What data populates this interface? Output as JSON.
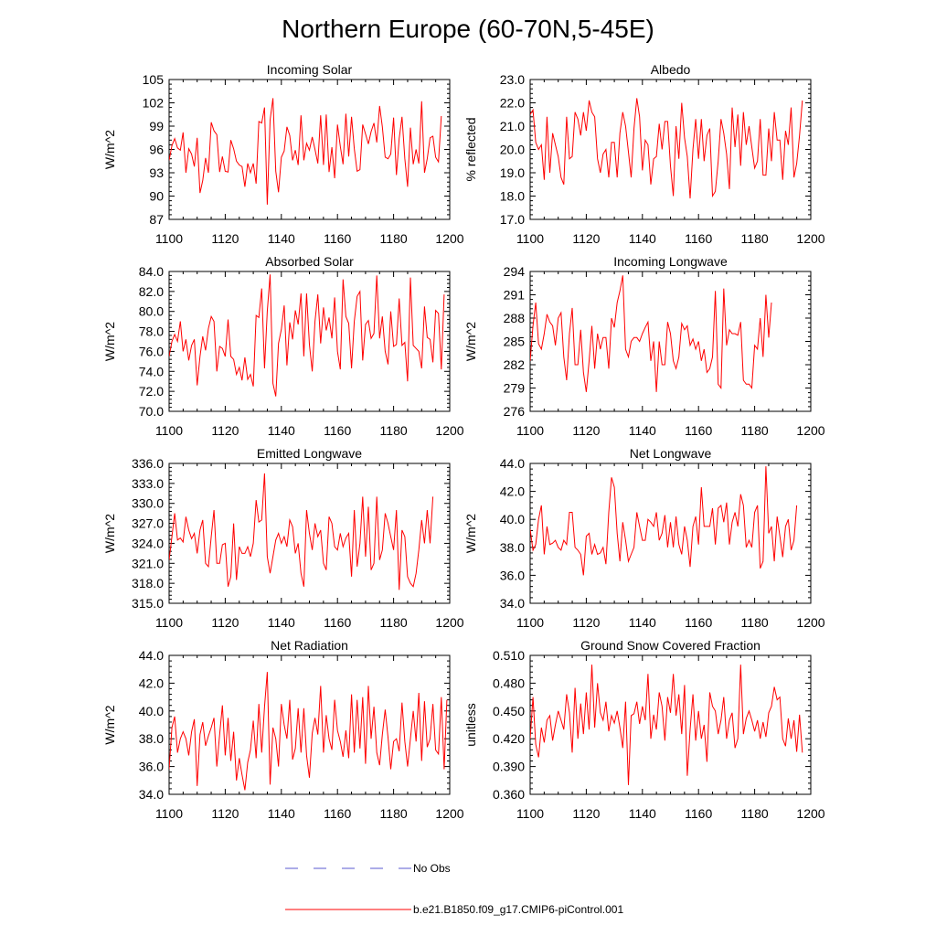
{
  "title": "Northern Europe (60-70N,5-45E)",
  "legend": [
    {
      "label": "No Obs",
      "color": "#5a5ad0",
      "style": "dashed"
    },
    {
      "label": "b.e21.B1850.f09_g17.CMIP6-piControl.001",
      "color": "#ff0000",
      "style": "solid"
    }
  ],
  "chart_data": [
    {
      "type": "line",
      "title": "Incoming Solar",
      "ylabel": "W/m^2",
      "xlim": [
        1100,
        1200
      ],
      "ylim": [
        87,
        105
      ],
      "xticks": [
        "1100",
        "1120",
        "1140",
        "1160",
        "1180",
        "1200"
      ],
      "yticks": [
        "87",
        "90",
        "93",
        "96",
        "99",
        "102",
        "105"
      ],
      "series": [
        {
          "name": "b.e21.B1850.f09_g17.CMIP6-piControl.001",
          "color": "#ff0000",
          "x_start": 1100,
          "values": [
            94.6,
            96.5,
            97.4,
            96.2,
            95.9,
            98.2,
            93.0,
            96.1,
            95.4,
            93.8,
            97.5,
            90.4,
            92.0,
            94.9,
            93.0,
            99.5,
            98.4,
            97.9,
            93.1,
            95.1,
            93.2,
            93.1,
            97.2,
            96.1,
            94.5,
            94.0,
            93.8,
            91.2,
            94.2,
            93.0,
            94.2,
            91.6,
            99.6,
            99.4,
            101.4,
            88.9,
            99.8,
            102.6,
            93.2,
            90.5,
            95.0,
            95.8,
            98.9,
            97.8,
            94.6,
            95.9,
            94.0,
            100.4,
            94.6,
            96.8,
            95.9,
            97.6,
            96.0,
            94.2,
            100.4,
            94.0,
            100.5,
            93.1,
            96.3,
            92.3,
            99.2,
            96.4,
            94.1,
            100.6,
            95.1,
            100.2,
            96.1,
            93.2,
            93.4,
            99.2,
            98.0,
            96.7,
            98.3,
            99.4,
            96.9,
            101.6,
            98.9,
            95.0,
            94.8,
            95.4,
            100.1,
            92.7,
            97.4,
            100.2,
            94.8,
            91.2,
            98.8,
            94.1,
            96.0,
            94.2,
            102.2,
            93.0,
            94.8,
            97.5,
            97.7,
            95.0,
            94.4,
            100.3
          ]
        }
      ]
    },
    {
      "type": "line",
      "title": "Albedo",
      "ylabel": "% reflected",
      "xlim": [
        1100,
        1200
      ],
      "ylim": [
        17.0,
        23.0
      ],
      "xticks": [
        "1100",
        "1120",
        "1140",
        "1160",
        "1180",
        "1200"
      ],
      "yticks": [
        "17.0",
        "18.0",
        "19.0",
        "20.0",
        "21.0",
        "22.0",
        "23.0"
      ],
      "series": [
        {
          "name": "b.e21.B1850.f09_g17.CMIP6-piControl.001",
          "color": "#ff0000",
          "x_start": 1100,
          "values": [
            21.5,
            21.7,
            20.3,
            20.0,
            20.2,
            18.7,
            21.4,
            19.0,
            20.7,
            20.2,
            19.7,
            18.8,
            18.5,
            21.4,
            19.6,
            19.7,
            21.6,
            21.3,
            20.6,
            21.6,
            20.8,
            22.1,
            21.6,
            21.4,
            19.6,
            19.0,
            19.8,
            20.0,
            18.8,
            20.3,
            20.3,
            18.8,
            20.7,
            21.6,
            21.0,
            19.9,
            18.8,
            20.9,
            22.2,
            21.4,
            19.1,
            20.4,
            20.2,
            18.5,
            19.6,
            19.7,
            21.1,
            20.0,
            21.2,
            21.2,
            19.3,
            18.0,
            21.0,
            19.6,
            22.0,
            20.5,
            19.7,
            17.9,
            20.0,
            21.3,
            19.6,
            21.3,
            19.5,
            20.6,
            20.9,
            18.0,
            18.2,
            19.5,
            21.3,
            20.7,
            19.8,
            18.3,
            21.8,
            20.1,
            21.5,
            19.3,
            21.6,
            20.2,
            21.0,
            20.1,
            19.2,
            19.5,
            21.3,
            18.9,
            18.9,
            20.9,
            19.5,
            21.6,
            20.4,
            20.4,
            18.7,
            20.8,
            20.2,
            21.8,
            18.8,
            19.4,
            20.6,
            22.1
          ]
        }
      ]
    },
    {
      "type": "line",
      "title": "Absorbed Solar",
      "ylabel": "W/m^2",
      "xlim": [
        1100,
        1200
      ],
      "ylim": [
        70.0,
        84.0
      ],
      "xticks": [
        "1100",
        "1120",
        "1140",
        "1160",
        "1180",
        "1200"
      ],
      "yticks": [
        "70.0",
        "72.0",
        "74.0",
        "76.0",
        "78.0",
        "80.0",
        "82.0",
        "84.0"
      ],
      "series": [
        {
          "name": "b.e21.B1850.f09_g17.CMIP6-piControl.001",
          "color": "#ff0000",
          "x_start": 1100,
          "values": [
            75.5,
            77.0,
            77.7,
            77.0,
            79.0,
            76.0,
            77.2,
            75.1,
            76.6,
            77.2,
            72.6,
            75.5,
            77.5,
            76.1,
            78.3,
            79.5,
            79.0,
            74.0,
            76.5,
            76.3,
            75.5,
            79.2,
            75.5,
            75.2,
            73.7,
            74.4,
            73.1,
            75.4,
            73.2,
            73.7,
            72.5,
            79.6,
            79.4,
            82.3,
            74.3,
            80.0,
            83.7,
            72.8,
            71.5,
            76.8,
            78.2,
            80.6,
            74.6,
            78.9,
            77.2,
            80.1,
            78.7,
            81.8,
            75.5,
            81.8,
            76.7,
            74.0,
            79.0,
            81.7,
            76.8,
            80.4,
            78.1,
            79.4,
            77.3,
            81.4,
            76.0,
            74.2,
            83.2,
            79.5,
            78.8,
            74.3,
            79.0,
            81.5,
            82.0,
            75.1,
            78.7,
            79.1,
            77.3,
            77.8,
            83.6,
            77.3,
            79.5,
            76.0,
            74.7,
            80.0,
            76.5,
            76.7,
            81.3,
            76.6,
            76.9,
            73.0,
            83.4,
            76.6,
            76.3,
            76.0,
            74.3,
            80.5,
            77.4,
            77.2,
            74.9,
            80.1,
            79.8,
            74.2,
            81.7
          ]
        }
      ]
    },
    {
      "type": "line",
      "title": "Incoming Longwave",
      "ylabel": "W/m^2",
      "xlim": [
        1100,
        1200
      ],
      "ylim": [
        276,
        294
      ],
      "xticks": [
        "1100",
        "1120",
        "1140",
        "1160",
        "1180",
        "1200"
      ],
      "yticks": [
        "276",
        "279",
        "282",
        "285",
        "288",
        "291",
        "294"
      ],
      "series": [
        {
          "name": "b.e21.B1850.f09_g17.CMIP6-piControl.001",
          "color": "#ff0000",
          "x_start": 1100,
          "values": [
            282.5,
            287.0,
            290.0,
            284.7,
            284.0,
            286.0,
            288.5,
            287.5,
            287.0,
            284.5,
            288.0,
            288.7,
            283.0,
            280.0,
            286.0,
            289.3,
            282.0,
            282.0,
            286.5,
            281.0,
            278.5,
            282.5,
            287.0,
            281.5,
            286.0,
            284.0,
            285.5,
            285.5,
            281.5,
            288.0,
            286.8,
            290.0,
            291.5,
            293.5,
            284.0,
            283.0,
            285.0,
            285.5,
            285.5,
            285.0,
            286.0,
            286.8,
            287.5,
            282.5,
            285.0,
            278.5,
            285.0,
            282.0,
            282.0,
            287.5,
            286.0,
            282.5,
            281.5,
            283.0,
            287.3,
            286.5,
            287.0,
            284.5,
            285.3,
            284.0,
            285.0,
            282.5,
            284.0,
            281.0,
            281.5,
            283.0,
            291.5,
            279.5,
            279.0,
            291.8,
            284.5,
            286.5,
            286.0,
            286.0,
            285.8,
            287.5,
            280.0,
            279.5,
            279.5,
            279.0,
            284.5,
            284.0,
            288.0,
            283.0,
            291.0,
            285.5,
            290.0
          ]
        }
      ]
    },
    {
      "type": "line",
      "title": "Emitted Longwave",
      "ylabel": "W/m^2",
      "xlim": [
        1100,
        1200
      ],
      "ylim": [
        315.0,
        336.0
      ],
      "xticks": [
        "1100",
        "1120",
        "1140",
        "1160",
        "1180",
        "1200"
      ],
      "yticks": [
        "315.0",
        "318.0",
        "321.0",
        "324.0",
        "327.0",
        "330.0",
        "333.0",
        "336.0"
      ],
      "series": [
        {
          "name": "b.e21.B1850.f09_g17.CMIP6-piControl.001",
          "color": "#ff0000",
          "x_start": 1100,
          "values": [
            321.5,
            325.0,
            328.5,
            324.5,
            324.8,
            324.2,
            328.0,
            326.0,
            324.7,
            325.5,
            322.5,
            326.0,
            327.5,
            321.0,
            320.5,
            325.0,
            329.0,
            321.0,
            321.0,
            323.8,
            324.0,
            317.5,
            319.0,
            327.0,
            318.5,
            323.5,
            322.5,
            322.5,
            323.5,
            322.0,
            324.0,
            330.5,
            327.2,
            327.5,
            334.5,
            322.0,
            319.5,
            322.0,
            324.5,
            325.5,
            324.0,
            325.0,
            323.5,
            327.5,
            326.5,
            322.5,
            324.0,
            319.5,
            317.5,
            329.0,
            325.5,
            323.0,
            327.0,
            325.0,
            326.0,
            321.0,
            320.0,
            328.0,
            327.0,
            323.5,
            323.0,
            325.5,
            323.5,
            324.8,
            325.5,
            319.0,
            329.0,
            320.5,
            324.0,
            331.0,
            322.0,
            329.5,
            320.0,
            321.0,
            331.0,
            321.5,
            323.0,
            328.5,
            327.0,
            325.0,
            323.0,
            329.0,
            317.0,
            326.0,
            325.0,
            319.0,
            318.0,
            317.5,
            319.5,
            323.0,
            327.5,
            324.0,
            329.0,
            324.0,
            331.0
          ]
        }
      ]
    },
    {
      "type": "line",
      "title": "Net Longwave",
      "ylabel": "W/m^2",
      "xlim": [
        1100,
        1200
      ],
      "ylim": [
        34.0,
        44.0
      ],
      "xticks": [
        "1100",
        "1120",
        "1140",
        "1160",
        "1180",
        "1200"
      ],
      "yticks": [
        "34.0",
        "36.0",
        "38.0",
        "40.0",
        "42.0",
        "44.0"
      ],
      "series": [
        {
          "name": "b.e21.B1850.f09_g17.CMIP6-piControl.001",
          "color": "#ff0000",
          "x_start": 1100,
          "values": [
            39.3,
            37.8,
            38.2,
            40.0,
            41.0,
            37.5,
            39.5,
            38.2,
            38.3,
            38.5,
            38.0,
            37.8,
            38.5,
            38.2,
            40.5,
            40.5,
            38.0,
            37.8,
            37.5,
            36.0,
            38.8,
            39.0,
            37.5,
            38.2,
            37.5,
            37.6,
            38.0,
            36.8,
            40.5,
            43.0,
            42.3,
            39.0,
            37.0,
            39.8,
            38.5,
            37.0,
            37.5,
            38.0,
            40.5,
            39.5,
            38.5,
            38.5,
            40.0,
            39.8,
            39.5,
            40.5,
            38.5,
            39.0,
            40.3,
            38.0,
            39.8,
            38.0,
            40.2,
            38.2,
            37.5,
            39.5,
            38.5,
            36.6,
            39.5,
            40.2,
            38.2,
            42.3,
            39.5,
            39.5,
            39.5,
            40.8,
            38.2,
            40.8,
            41.0,
            39.8,
            41.2,
            38.2,
            39.8,
            40.5,
            39.5,
            41.8,
            41.0,
            38.0,
            38.5,
            38.0,
            40.5,
            41.0,
            36.5,
            37.0,
            43.8,
            39.0,
            39.5,
            37.0,
            40.2,
            38.8,
            37.3,
            39.5,
            40.0,
            37.8,
            38.5,
            41.0
          ]
        }
      ]
    },
    {
      "type": "line",
      "title": "Net Radiation",
      "ylabel": "W/m^2",
      "xlim": [
        1100,
        1200
      ],
      "ylim": [
        34.0,
        44.0
      ],
      "xticks": [
        "1100",
        "1120",
        "1140",
        "1160",
        "1180",
        "1200"
      ],
      "yticks": [
        "34.0",
        "36.0",
        "38.0",
        "40.0",
        "42.0",
        "44.0"
      ],
      "series": [
        {
          "name": "b.e21.B1850.f09_g17.CMIP6-piControl.001",
          "color": "#ff0000",
          "x_start": 1100,
          "values": [
            35.8,
            38.8,
            39.6,
            37.0,
            38.0,
            38.5,
            38.0,
            36.8,
            38.5,
            39.4,
            34.6,
            38.3,
            39.2,
            37.5,
            38.2,
            38.8,
            39.5,
            36.0,
            38.3,
            40.4,
            36.8,
            39.5,
            36.4,
            38.5,
            35.0,
            36.6,
            35.4,
            34.3,
            36.3,
            37.2,
            39.3,
            36.6,
            40.5,
            37.0,
            40.3,
            42.8,
            34.7,
            38.8,
            38.0,
            36.0,
            40.5,
            39.0,
            38.0,
            40.8,
            36.5,
            37.3,
            40.2,
            37.0,
            40.2,
            36.8,
            35.2,
            38.4,
            39.5,
            38.3,
            41.8,
            37.0,
            39.7,
            38.0,
            37.2,
            40.8,
            38.6,
            37.8,
            36.7,
            38.6,
            36.6,
            41.2,
            37.0,
            40.8,
            37.3,
            41.0,
            36.2,
            41.8,
            38.0,
            40.3,
            37.0,
            36.1,
            38.3,
            40.1,
            38.1,
            35.8,
            37.8,
            38.0,
            37.1,
            40.6,
            37.8,
            36.0,
            38.0,
            40.0,
            37.8,
            41.3,
            36.4,
            40.7,
            37.4,
            38.0,
            40.5,
            37.2,
            36.9,
            41.0,
            35.8,
            40.8
          ]
        }
      ]
    },
    {
      "type": "line",
      "title": "Ground Snow Covered Fraction",
      "ylabel": "unitless",
      "xlim": [
        1100,
        1200
      ],
      "ylim": [
        0.36,
        0.51
      ],
      "xticks": [
        "1100",
        "1120",
        "1140",
        "1160",
        "1180",
        "1200"
      ],
      "yticks": [
        "0.360",
        "0.390",
        "0.420",
        "0.450",
        "0.480",
        "0.510"
      ],
      "series": [
        {
          "name": "b.e21.B1850.f09_g17.CMIP6-piControl.001",
          "color": "#ff0000",
          "x_start": 1100,
          "values": [
            0.42,
            0.465,
            0.414,
            0.4,
            0.432,
            0.416,
            0.44,
            0.445,
            0.418,
            0.435,
            0.45,
            0.44,
            0.43,
            0.468,
            0.448,
            0.405,
            0.475,
            0.42,
            0.458,
            0.425,
            0.47,
            0.43,
            0.5,
            0.432,
            0.48,
            0.448,
            0.44,
            0.46,
            0.428,
            0.445,
            0.437,
            0.45,
            0.432,
            0.41,
            0.46,
            0.37,
            0.445,
            0.447,
            0.46,
            0.436,
            0.455,
            0.44,
            0.49,
            0.42,
            0.446,
            0.43,
            0.47,
            0.455,
            0.418,
            0.465,
            0.448,
            0.49,
            0.445,
            0.468,
            0.425,
            0.478,
            0.38,
            0.43,
            0.468,
            0.418,
            0.45,
            0.42,
            0.435,
            0.395,
            0.47,
            0.455,
            0.45,
            0.425,
            0.44,
            0.465,
            0.42,
            0.44,
            0.448,
            0.41,
            0.42,
            0.5,
            0.425,
            0.442,
            0.45,
            0.44,
            0.428,
            0.44,
            0.42,
            0.438,
            0.422,
            0.448,
            0.455,
            0.476,
            0.462,
            0.465,
            0.42,
            0.412,
            0.442,
            0.42,
            0.44,
            0.406,
            0.446,
            0.405
          ]
        }
      ]
    }
  ]
}
